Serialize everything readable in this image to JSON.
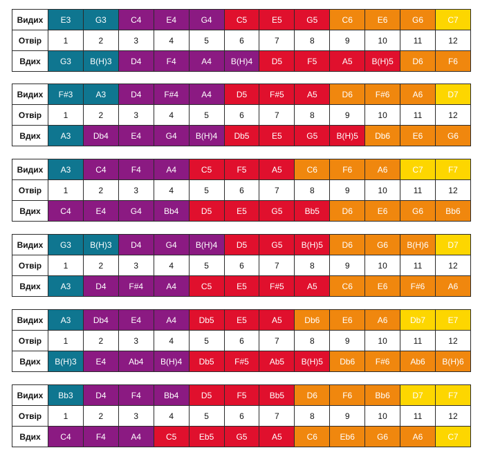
{
  "labels": {
    "blow": "Видих",
    "hole": "Отвір",
    "draw": "Вдих"
  },
  "holes": [
    "1",
    "2",
    "3",
    "4",
    "5",
    "6",
    "7",
    "8",
    "9",
    "10",
    "11",
    "12"
  ],
  "colors": {
    "b": "#0f7690",
    "p": "#8b1a82",
    "r": "#e0102d",
    "o": "#f0870e",
    "y": "#fdd600"
  },
  "charts": [
    {
      "blow": [
        "E3",
        "G3",
        "C4",
        "E4",
        "G4",
        "C5",
        "E5",
        "G5",
        "C6",
        "E6",
        "G6",
        "C7"
      ],
      "blow_colors": [
        "b",
        "b",
        "p",
        "p",
        "p",
        "r",
        "r",
        "r",
        "o",
        "o",
        "o",
        "y"
      ],
      "draw": [
        "G3",
        "B(H)3",
        "D4",
        "F4",
        "A4",
        "B(H)4",
        "D5",
        "F5",
        "A5",
        "B(H)5",
        "D6",
        "F6"
      ],
      "draw_colors": [
        "b",
        "b",
        "p",
        "p",
        "p",
        "p",
        "r",
        "r",
        "r",
        "r",
        "o",
        "o"
      ]
    },
    {
      "blow": [
        "F#3",
        "A3",
        "D4",
        "F#4",
        "A4",
        "D5",
        "F#5",
        "A5",
        "D6",
        "F#6",
        "A6",
        "D7"
      ],
      "blow_colors": [
        "b",
        "b",
        "p",
        "p",
        "p",
        "r",
        "r",
        "r",
        "o",
        "o",
        "o",
        "y"
      ],
      "draw": [
        "A3",
        "Db4",
        "E4",
        "G4",
        "B(H)4",
        "Db5",
        "E5",
        "G5",
        "B(H)5",
        "Db6",
        "E6",
        "G6"
      ],
      "draw_colors": [
        "b",
        "p",
        "p",
        "p",
        "p",
        "r",
        "r",
        "r",
        "r",
        "o",
        "o",
        "o"
      ]
    },
    {
      "blow": [
        "A3",
        "C4",
        "F4",
        "A4",
        "C5",
        "F5",
        "A5",
        "C6",
        "F6",
        "A6",
        "C7",
        "F7"
      ],
      "blow_colors": [
        "b",
        "p",
        "p",
        "p",
        "r",
        "r",
        "r",
        "o",
        "o",
        "o",
        "y",
        "y"
      ],
      "draw": [
        "C4",
        "E4",
        "G4",
        "Bb4",
        "D5",
        "E5",
        "G5",
        "Bb5",
        "D6",
        "E6",
        "G6",
        "Bb6"
      ],
      "draw_colors": [
        "p",
        "p",
        "p",
        "p",
        "r",
        "r",
        "r",
        "r",
        "o",
        "o",
        "o",
        "o"
      ]
    },
    {
      "blow": [
        "G3",
        "B(H)3",
        "D4",
        "G4",
        "B(H)4",
        "D5",
        "G5",
        "B(H)5",
        "D6",
        "G6",
        "B(H)6",
        "D7"
      ],
      "blow_colors": [
        "b",
        "b",
        "p",
        "p",
        "p",
        "r",
        "r",
        "r",
        "o",
        "o",
        "o",
        "y"
      ],
      "draw": [
        "A3",
        "D4",
        "F#4",
        "A4",
        "C5",
        "E5",
        "F#5",
        "A5",
        "C6",
        "E6",
        "F#6",
        "A6"
      ],
      "draw_colors": [
        "b",
        "p",
        "p",
        "p",
        "r",
        "r",
        "r",
        "r",
        "o",
        "o",
        "o",
        "o"
      ]
    },
    {
      "blow": [
        "A3",
        "Db4",
        "E4",
        "A4",
        "Db5",
        "E5",
        "A5",
        "Db6",
        "E6",
        "A6",
        "Db7",
        "E7"
      ],
      "blow_colors": [
        "b",
        "p",
        "p",
        "p",
        "r",
        "r",
        "r",
        "o",
        "o",
        "o",
        "y",
        "y"
      ],
      "draw": [
        "B(H)3",
        "E4",
        "Ab4",
        "B(H)4",
        "Db5",
        "F#5",
        "Ab5",
        "B(H)5",
        "Db6",
        "F#6",
        "Ab6",
        "B(H)6"
      ],
      "draw_colors": [
        "b",
        "p",
        "p",
        "p",
        "r",
        "r",
        "r",
        "r",
        "o",
        "o",
        "o",
        "o"
      ]
    },
    {
      "blow": [
        "Bb3",
        "D4",
        "F4",
        "Bb4",
        "D5",
        "F5",
        "Bb5",
        "D6",
        "F6",
        "Bb6",
        "D7",
        "F7"
      ],
      "blow_colors": [
        "b",
        "p",
        "p",
        "p",
        "r",
        "r",
        "r",
        "o",
        "o",
        "o",
        "y",
        "y"
      ],
      "draw": [
        "C4",
        "F4",
        "A4",
        "C5",
        "Eb5",
        "G5",
        "A5",
        "C6",
        "Eb6",
        "G6",
        "A6",
        "C7"
      ],
      "draw_colors": [
        "p",
        "p",
        "p",
        "r",
        "r",
        "r",
        "r",
        "o",
        "o",
        "o",
        "o",
        "y"
      ]
    }
  ]
}
